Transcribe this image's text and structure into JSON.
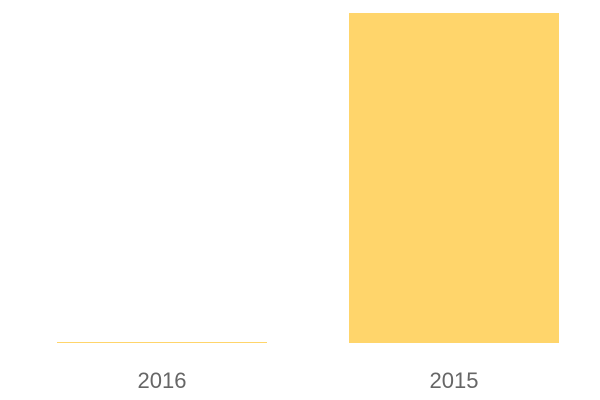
{
  "chart_data": {
    "type": "bar",
    "title": "",
    "xlabel": "",
    "ylabel": "",
    "categories": [
      "2016",
      "2015"
    ],
    "values": [
      0,
      100
    ],
    "ylim": [
      0,
      100
    ],
    "grid": false,
    "bar_color": "#FFD56B",
    "label_color": "#666666"
  }
}
